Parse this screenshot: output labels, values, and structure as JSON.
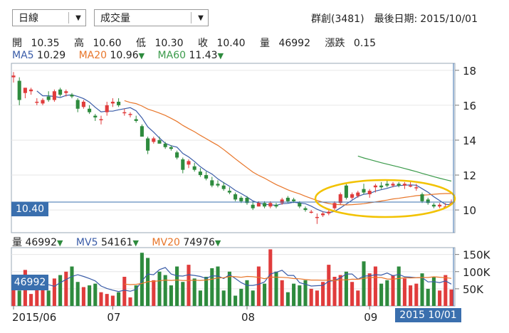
{
  "toolbar": {
    "period_select": "日線",
    "indicator_select": "成交量",
    "stock_name": "群創(3481)",
    "last_date_label": "最後日期:",
    "last_date": "2015/10/01"
  },
  "ohlc": [
    {
      "label": "開",
      "value": "10.35"
    },
    {
      "label": "高",
      "value": "10.60"
    },
    {
      "label": "低",
      "value": "10.30"
    },
    {
      "label": "收",
      "value": "10.40"
    },
    {
      "label": "量",
      "value": "46992"
    },
    {
      "label": "漲跌",
      "value": "0.15"
    }
  ],
  "ma_legend": [
    {
      "name": "MA5",
      "value": "10.29",
      "color": "#3a5ca8"
    },
    {
      "name": "MA20",
      "value": "10.96",
      "color": "#e8762a"
    },
    {
      "name": "MA60",
      "value": "11.43",
      "color": "#3a9a4a"
    }
  ],
  "vol_legend": [
    {
      "name": "量",
      "value": "46992",
      "color": "#222222"
    },
    {
      "name": "MV5",
      "value": "54161",
      "color": "#3a5ca8"
    },
    {
      "name": "MV20",
      "value": "74976",
      "color": "#e8762a"
    }
  ],
  "current_price_tag": "10.40",
  "current_volume_tag": "46992",
  "date_tag": "2015 10/01",
  "colors": {
    "up": "#e03c3c",
    "down": "#2e8b3e",
    "ma5": "#3a5ca8",
    "ma20": "#e8762a",
    "ma60": "#3a9a4a",
    "highlight": "#f2c200",
    "tag": "#3a6fae"
  },
  "chart_data": [
    {
      "type": "candlestick",
      "y_ticks": [
        "18",
        "16",
        "14",
        "12",
        "10"
      ],
      "ylim": [
        8.7,
        18.4
      ],
      "x_ticks": [
        "2015/06",
        "07",
        "08",
        "09"
      ],
      "candles": [
        [
          17.6,
          17.9,
          17.3,
          17.7
        ],
        [
          17.4,
          17.6,
          16.0,
          16.3
        ],
        [
          16.7,
          17.0,
          16.4,
          17.0
        ],
        [
          16.8,
          17.0,
          16.6,
          16.9
        ],
        [
          16.2,
          16.4,
          16.0,
          16.2
        ],
        [
          16.1,
          16.4,
          16.0,
          16.3
        ],
        [
          16.5,
          16.8,
          16.2,
          16.3
        ],
        [
          16.3,
          16.9,
          16.2,
          16.8
        ],
        [
          16.9,
          17.0,
          16.5,
          16.6
        ],
        [
          16.7,
          16.9,
          16.5,
          16.8
        ],
        [
          16.6,
          16.7,
          16.4,
          16.5
        ],
        [
          16.3,
          16.4,
          15.6,
          15.8
        ],
        [
          15.9,
          16.3,
          15.8,
          16.2
        ],
        [
          15.8,
          16.0,
          15.5,
          15.6
        ],
        [
          15.4,
          15.5,
          15.1,
          15.3
        ],
        [
          15.2,
          15.4,
          14.9,
          15.2
        ],
        [
          15.6,
          16.2,
          15.4,
          16.0
        ],
        [
          16.1,
          16.4,
          15.9,
          16.2
        ],
        [
          16.2,
          16.4,
          15.9,
          16.0
        ],
        [
          15.6,
          15.8,
          15.4,
          15.6
        ],
        [
          15.5,
          15.6,
          15.3,
          15.5
        ],
        [
          15.2,
          15.4,
          15.0,
          15.1
        ],
        [
          14.8,
          14.9,
          14.2,
          14.2
        ],
        [
          14.1,
          14.2,
          13.2,
          13.4
        ],
        [
          13.9,
          14.2,
          13.8,
          14.1
        ],
        [
          14.0,
          14.2,
          13.8,
          13.8
        ],
        [
          13.8,
          13.9,
          13.5,
          13.6
        ],
        [
          13.6,
          13.7,
          13.4,
          13.5
        ],
        [
          13.3,
          13.4,
          12.9,
          13.0
        ],
        [
          12.9,
          13.0,
          12.1,
          12.3
        ],
        [
          12.6,
          12.9,
          12.4,
          12.8
        ],
        [
          12.5,
          12.7,
          12.2,
          12.3
        ],
        [
          12.2,
          12.4,
          11.9,
          12.0
        ],
        [
          12.0,
          12.2,
          11.7,
          11.8
        ],
        [
          11.7,
          11.9,
          11.3,
          11.4
        ],
        [
          11.5,
          11.7,
          11.3,
          11.4
        ],
        [
          11.4,
          11.6,
          11.1,
          11.2
        ],
        [
          11.1,
          11.3,
          10.9,
          11.0
        ],
        [
          10.9,
          11.0,
          10.5,
          10.6
        ],
        [
          10.7,
          10.8,
          10.4,
          10.5
        ],
        [
          10.7,
          10.8,
          10.3,
          10.4
        ],
        [
          10.3,
          10.5,
          10.0,
          10.1
        ],
        [
          10.2,
          10.5,
          10.2,
          10.4
        ],
        [
          10.4,
          10.5,
          10.1,
          10.2
        ],
        [
          10.2,
          10.5,
          10.1,
          10.4
        ],
        [
          10.3,
          10.4,
          10.1,
          10.2
        ],
        [
          10.4,
          10.7,
          10.3,
          10.6
        ],
        [
          10.7,
          10.8,
          10.4,
          10.5
        ],
        [
          10.6,
          10.7,
          10.4,
          10.5
        ],
        [
          10.4,
          10.5,
          10.1,
          10.2
        ],
        [
          10.1,
          10.2,
          9.9,
          10.0
        ],
        [
          9.9,
          10.0,
          9.8,
          9.9
        ],
        [
          9.6,
          9.8,
          9.2,
          9.6
        ],
        [
          9.7,
          9.9,
          9.6,
          9.8
        ],
        [
          9.8,
          10.0,
          9.7,
          9.9
        ],
        [
          10.1,
          10.5,
          10.0,
          10.4
        ],
        [
          10.4,
          11.0,
          10.3,
          10.9
        ],
        [
          11.4,
          11.5,
          10.6,
          10.7
        ],
        [
          10.7,
          11.0,
          10.6,
          10.9
        ],
        [
          10.8,
          11.1,
          10.7,
          11.0
        ],
        [
          11.2,
          11.5,
          10.9,
          11.0
        ],
        [
          10.9,
          11.2,
          10.7,
          11.1
        ],
        [
          11.3,
          11.5,
          11.0,
          11.4
        ],
        [
          11.4,
          11.6,
          11.2,
          11.3
        ],
        [
          11.5,
          11.7,
          11.3,
          11.4
        ],
        [
          11.4,
          11.6,
          11.3,
          11.5
        ],
        [
          11.5,
          11.6,
          11.3,
          11.4
        ],
        [
          11.4,
          11.6,
          11.2,
          11.5
        ],
        [
          11.4,
          11.6,
          11.3,
          11.4
        ],
        [
          11.3,
          11.5,
          11.1,
          11.3
        ],
        [
          10.9,
          11.0,
          10.4,
          10.5
        ],
        [
          10.6,
          10.7,
          10.3,
          10.4
        ],
        [
          10.3,
          10.4,
          10.1,
          10.2
        ],
        [
          10.2,
          10.4,
          10.1,
          10.3
        ],
        [
          10.2,
          10.4,
          10.1,
          10.2
        ],
        [
          10.35,
          10.6,
          10.3,
          10.4
        ]
      ]
    },
    {
      "type": "bar",
      "y_ticks": [
        "150K",
        "100K",
        "50K"
      ],
      "ylim": [
        0,
        170
      ],
      "volumes": [
        55,
        45,
        105,
        35,
        55,
        70,
        45,
        80,
        90,
        100,
        115,
        70,
        55,
        60,
        65,
        40,
        35,
        30,
        40,
        85,
        25,
        60,
        155,
        140,
        75,
        100,
        90,
        60,
        115,
        70,
        120,
        80,
        45,
        85,
        110,
        115,
        45,
        100,
        30,
        50,
        75,
        45,
        115,
        65,
        165,
        100,
        75,
        40,
        65,
        60,
        75,
        50,
        45,
        70,
        120,
        85,
        90,
        100,
        70,
        45,
        130,
        95,
        115,
        65,
        75,
        90,
        115,
        80,
        60,
        65,
        95,
        50,
        85,
        45,
        90,
        48
      ]
    }
  ]
}
